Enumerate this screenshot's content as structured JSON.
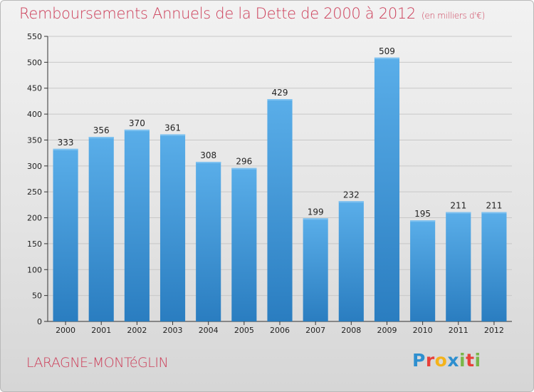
{
  "title": "Remboursements Annuels de la Dette de 2000 à 2012",
  "unit": "(en milliers d'€)",
  "commune": "LARAGNE-MONTéGLIN",
  "logo": {
    "text": "Proxiti",
    "letters": [
      {
        "ch": "P",
        "color": "#2e8fcf"
      },
      {
        "ch": "r",
        "color": "#e8403a"
      },
      {
        "ch": "o",
        "color": "#f4b31b"
      },
      {
        "ch": "x",
        "color": "#2e8fcf"
      },
      {
        "ch": "i",
        "color": "#7ab648"
      },
      {
        "ch": "t",
        "color": "#e8403a"
      },
      {
        "ch": "i",
        "color": "#7ab648"
      }
    ]
  },
  "colors": {
    "bar_top": "#5aaee9",
    "bar_bottom": "#2a7dc0",
    "title": "#cc3d58"
  },
  "chart_data": {
    "type": "bar",
    "categories": [
      "2000",
      "2001",
      "2002",
      "2003",
      "2004",
      "2005",
      "2006",
      "2007",
      "2008",
      "2009",
      "2010",
      "2011",
      "2012"
    ],
    "values": [
      333,
      356,
      370,
      361,
      308,
      296,
      429,
      199,
      232,
      509,
      195,
      211,
      211
    ],
    "ylim": [
      0,
      550
    ],
    "yticks": [
      0,
      50,
      100,
      150,
      200,
      250,
      300,
      350,
      400,
      450,
      500,
      550
    ],
    "grid": true
  }
}
